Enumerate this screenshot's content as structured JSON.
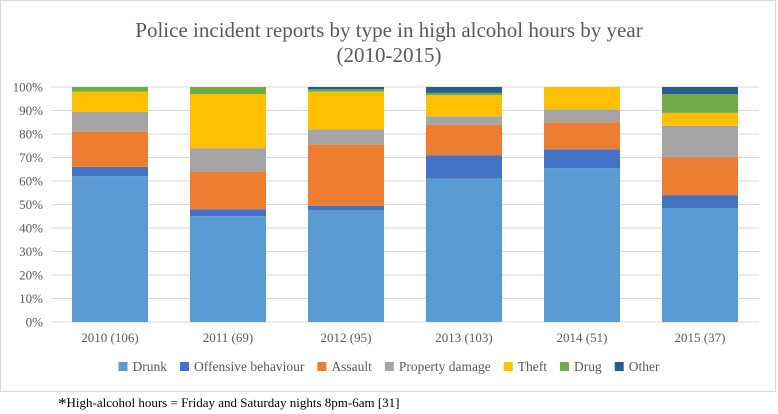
{
  "chart_data": {
    "type": "bar",
    "stacked": true,
    "title_line1": "Police incident reports by type in high alcohol hours by year",
    "title_line2": "(2010-2015)",
    "categories": [
      "2010 (106)",
      "2011 (69)",
      "2012 (95)",
      "2013 (103)",
      "2014 (51)",
      "2015 (37)"
    ],
    "ylim": [
      0,
      100
    ],
    "y_ticks": [
      "0%",
      "10%",
      "20%",
      "30%",
      "40%",
      "50%",
      "60%",
      "70%",
      "80%",
      "90%",
      "100%"
    ],
    "grid": true,
    "legend_position": "bottom",
    "series": [
      {
        "name": "Drunk",
        "color": "#5b9bd5",
        "values": [
          62,
          45,
          47.5,
          61,
          65.5,
          48.5
        ]
      },
      {
        "name": "Offensive behaviour",
        "color": "#4472c4",
        "values": [
          4,
          3,
          2,
          10,
          8,
          5.5
        ]
      },
      {
        "name": "Assault",
        "color": "#ed7d31",
        "values": [
          15,
          16,
          26,
          13,
          11.5,
          16
        ]
      },
      {
        "name": "Property damage",
        "color": "#a5a5a5",
        "values": [
          8.5,
          10,
          6.5,
          3.5,
          5.5,
          13.5
        ]
      },
      {
        "name": "Theft",
        "color": "#ffc000",
        "values": [
          8.5,
          23,
          16,
          9,
          9.5,
          5.5
        ]
      },
      {
        "name": "Drug",
        "color": "#70ad47",
        "values": [
          2,
          3,
          1,
          1,
          0,
          8
        ]
      },
      {
        "name": "Other",
        "color": "#255e91",
        "values": [
          0,
          0,
          1,
          2.5,
          0,
          3
        ]
      }
    ]
  },
  "footnote": {
    "star": "*",
    "text": "High-alcohol hours = Friday and Saturday nights 8pm-6am [31]"
  }
}
